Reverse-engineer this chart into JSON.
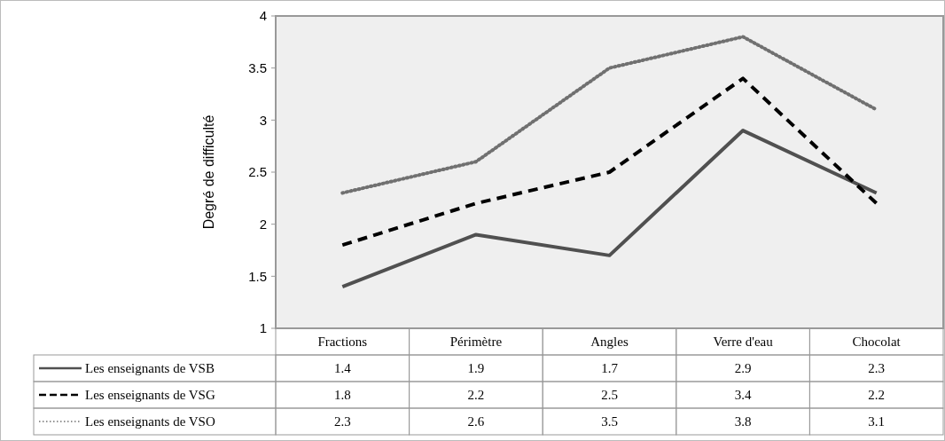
{
  "chart_data": {
    "type": "line",
    "ylabel": "Degré de difficulté",
    "categories": [
      "Fractions",
      "Périmètre",
      "Angles",
      "Verre d'eau",
      "Chocolat"
    ],
    "series": [
      {
        "name": "Les enseignants de VSB",
        "color": "#505050",
        "line_style": "solid",
        "values": [
          1.4,
          1.9,
          1.7,
          2.9,
          2.3
        ]
      },
      {
        "name": "Les enseignants de VSG",
        "color": "#000000",
        "line_style": "dashed",
        "values": [
          1.8,
          2.2,
          2.5,
          3.4,
          2.2
        ]
      },
      {
        "name": "Les enseignants de VSO",
        "color": "#707070",
        "line_style": "dotted",
        "values": [
          2.3,
          2.6,
          3.5,
          3.8,
          3.1
        ]
      }
    ],
    "ylim": [
      1,
      4
    ],
    "yticks": [
      1,
      1.5,
      2,
      2.5,
      3,
      3.5,
      4
    ],
    "grid": false,
    "legend": "bottom",
    "data_labels": true,
    "marker": "none"
  }
}
